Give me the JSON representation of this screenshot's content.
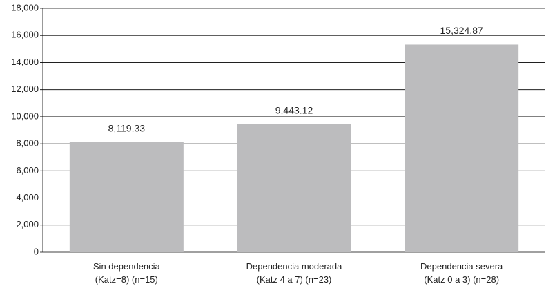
{
  "chart_data": {
    "type": "bar",
    "categories": [
      "Sin dependencia\n(Katz=8) (n=15)",
      "Dependencia moderada\n(Katz 4 a 7) (n=23)",
      "Dependencia severa\n(Katz 0 a 3) (n=28)"
    ],
    "values": [
      8119.33,
      9443.12,
      15324.87
    ],
    "value_labels": [
      "8,119.33",
      "9,443.12",
      "15,324.87"
    ],
    "color": "#bcbcbe",
    "ylim": [
      0,
      18000
    ],
    "yticks": [
      0,
      {
        "value": 2000,
        "label": "2,000"
      },
      {
        "value": 4000,
        "label": "4,000"
      },
      {
        "value": 6000,
        "label": "6,000"
      },
      {
        "value": 8000,
        "label": "8,000"
      },
      {
        "value": 10000,
        "label": "10,000"
      },
      {
        "value": 12000,
        "label": "12,000"
      },
      {
        "value": 14000,
        "label": "14,000"
      },
      {
        "value": 16000,
        "label": "16,000"
      },
      {
        "value": 18000,
        "label": "18,000"
      }
    ],
    "grid": true
  }
}
